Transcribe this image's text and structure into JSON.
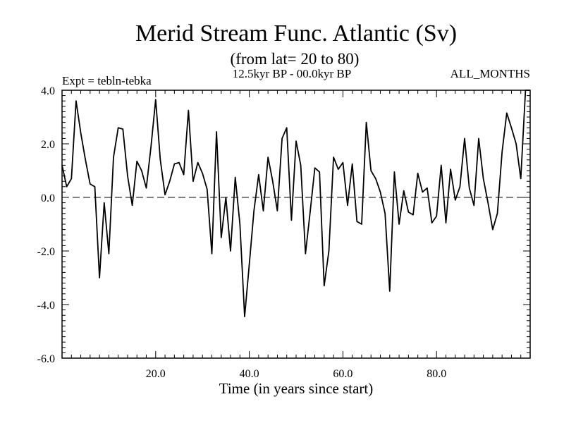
{
  "chart_data": {
    "type": "line",
    "title": "Merid Stream Func. Atlantic (Sv)",
    "subtitle": "(from lat= 20 to 80)",
    "left_note": "Expt = tebln-tebka",
    "center_note": "12.5kyr BP - 00.0kyr BP",
    "right_note": "ALL_MONTHS",
    "xlabel": "Time (in years since start)",
    "ylabel": "",
    "xlim": [
      0,
      100
    ],
    "ylim": [
      -6,
      4
    ],
    "x_ticks": [
      20,
      40,
      60,
      80
    ],
    "x_tick_labels": [
      "20.0",
      "40.0",
      "60.0",
      "80.0"
    ],
    "y_ticks": [
      -6,
      -4,
      -2,
      0,
      2,
      4
    ],
    "y_tick_labels": [
      "-6.0",
      "-4.0",
      "-2.0",
      "0.0",
      "2.0",
      "4.0"
    ],
    "reference_line": 0,
    "series": [
      {
        "name": "tebln-tebka",
        "color": "#000000",
        "x": [
          0,
          1,
          2,
          3,
          4,
          5,
          6,
          7,
          8,
          9,
          10,
          11,
          12,
          13,
          14,
          15,
          16,
          17,
          18,
          19,
          20,
          21,
          22,
          23,
          24,
          25,
          26,
          27,
          28,
          29,
          30,
          31,
          32,
          33,
          34,
          35,
          36,
          37,
          38,
          39,
          40,
          41,
          42,
          43,
          44,
          45,
          46,
          47,
          48,
          49,
          50,
          51,
          52,
          53,
          54,
          55,
          56,
          57,
          58,
          59,
          60,
          61,
          62,
          63,
          64,
          65,
          66,
          67,
          68,
          69,
          70,
          71,
          72,
          73,
          74,
          75,
          76,
          77,
          78,
          79,
          80,
          81,
          82,
          83,
          84,
          85,
          86,
          87,
          88,
          89,
          90,
          91,
          92,
          93,
          94,
          95,
          96,
          97,
          98,
          99,
          100
        ],
        "values": [
          1.2,
          0.4,
          0.7,
          3.6,
          2.4,
          1.4,
          0.5,
          0.4,
          -3.0,
          -0.2,
          -2.1,
          1.5,
          2.6,
          2.55,
          0.8,
          -0.3,
          1.35,
          1.0,
          0.35,
          1.9,
          3.65,
          1.4,
          0.1,
          0.6,
          1.25,
          1.3,
          0.85,
          3.25,
          0.6,
          1.3,
          0.9,
          0.3,
          -2.1,
          2.45,
          -1.5,
          0.0,
          -2.0,
          0.75,
          -1.0,
          -4.45,
          -2.5,
          -0.5,
          0.85,
          -0.5,
          1.5,
          0.6,
          -0.5,
          2.2,
          2.6,
          -0.85,
          2.1,
          1.2,
          -2.1,
          -0.55,
          1.1,
          0.95,
          -3.3,
          -2.0,
          1.5,
          1.05,
          1.3,
          -0.3,
          1.25,
          -0.9,
          -1.0,
          2.8,
          1.0,
          0.7,
          0.2,
          -0.6,
          -3.5,
          0.95,
          -1.0,
          0.25,
          -0.55,
          -0.65,
          0.9,
          0.2,
          0.35,
          -0.95,
          -0.7,
          1.2,
          -0.95,
          1.05,
          -0.1,
          0.4,
          2.2,
          0.35,
          -0.3,
          2.2,
          0.7,
          -0.2,
          -1.2,
          -0.6,
          1.7,
          3.15,
          2.6,
          2.0,
          0.7,
          4.0,
          4.0
        ]
      }
    ]
  }
}
